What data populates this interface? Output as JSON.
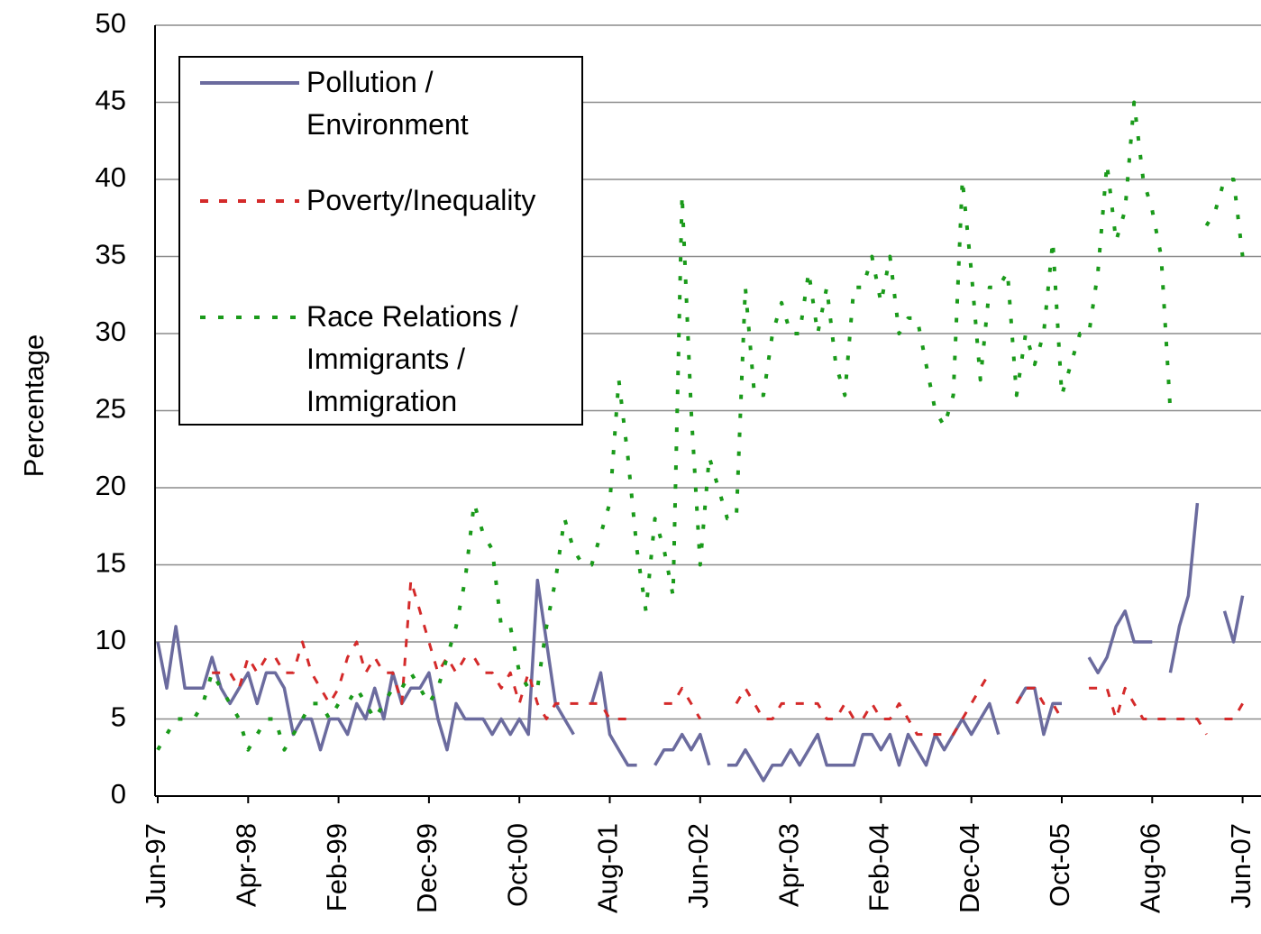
{
  "chart_data": {
    "type": "line",
    "ylabel": "Percentage",
    "categories": [
      "Jun-97",
      null,
      null,
      null,
      null,
      null,
      null,
      null,
      null,
      null,
      "Apr-98",
      null,
      null,
      null,
      null,
      null,
      null,
      null,
      null,
      null,
      "Feb-99",
      null,
      null,
      null,
      null,
      null,
      null,
      null,
      null,
      null,
      "Dec-99",
      null,
      null,
      null,
      null,
      null,
      null,
      null,
      null,
      null,
      "Oct-00",
      null,
      null,
      null,
      null,
      null,
      null,
      null,
      null,
      null,
      "Aug-01",
      null,
      null,
      null,
      null,
      null,
      null,
      null,
      null,
      null,
      "Jun-02",
      null,
      null,
      null,
      null,
      null,
      null,
      null,
      null,
      null,
      "Apr-03",
      null,
      null,
      null,
      null,
      null,
      null,
      null,
      null,
      null,
      "Feb-04",
      null,
      null,
      null,
      null,
      null,
      null,
      null,
      null,
      null,
      "Dec-04",
      null,
      null,
      null,
      null,
      null,
      null,
      null,
      null,
      null,
      "Oct-05",
      null,
      null,
      null,
      null,
      null,
      null,
      null,
      null,
      null,
      "Aug-06",
      null,
      null,
      null,
      null,
      null,
      null,
      null,
      null,
      null,
      "Jun-07"
    ],
    "series": [
      {
        "name": "Pollution / Environment",
        "color": "#6b6b9e",
        "style": "solid",
        "values": [
          10,
          7,
          11,
          7,
          7,
          7,
          9,
          7,
          6,
          7,
          8,
          6,
          8,
          8,
          7,
          4,
          5,
          5,
          3,
          5,
          5,
          4,
          6,
          5,
          7,
          5,
          8,
          6,
          7,
          7,
          8,
          5,
          3,
          6,
          5,
          5,
          5,
          4,
          5,
          4,
          5,
          4,
          14,
          10,
          6,
          5,
          4,
          null,
          6,
          8,
          4,
          3,
          2,
          2,
          null,
          2,
          3,
          3,
          4,
          3,
          4,
          2,
          null,
          2,
          2,
          3,
          2,
          1,
          2,
          2,
          3,
          2,
          3,
          4,
          2,
          2,
          2,
          2,
          4,
          4,
          3,
          4,
          2,
          4,
          3,
          2,
          4,
          3,
          4,
          5,
          4,
          5,
          6,
          4,
          null,
          6,
          7,
          7,
          4,
          6,
          6,
          null,
          null,
          9,
          8,
          9,
          11,
          12,
          10,
          10,
          10,
          null,
          8,
          11,
          13,
          19,
          null,
          null,
          12,
          10,
          13
        ]
      },
      {
        "name": "Poverty/Inequality",
        "color": "#d42a2a",
        "style": "dashed",
        "values": [
          null,
          null,
          null,
          null,
          null,
          null,
          8,
          8,
          8,
          7,
          9,
          8,
          9,
          9,
          8,
          8,
          10,
          8,
          7,
          6,
          7,
          9,
          10,
          8,
          9,
          8,
          8,
          6,
          14,
          12,
          10,
          8,
          9,
          8,
          9,
          9,
          8,
          8,
          7,
          8,
          6,
          8,
          6,
          5,
          6,
          6,
          6,
          6,
          6,
          6,
          5,
          5,
          5,
          null,
          null,
          null,
          6,
          6,
          7,
          6,
          5,
          null,
          null,
          null,
          6,
          7,
          6,
          5,
          5,
          6,
          6,
          6,
          6,
          6,
          5,
          5,
          6,
          5,
          5,
          6,
          5,
          5,
          6,
          5,
          4,
          4,
          4,
          4,
          4,
          5,
          6,
          7,
          8,
          null,
          null,
          6,
          7,
          7,
          6,
          6,
          5,
          null,
          null,
          7,
          7,
          7,
          5,
          7,
          6,
          5,
          5,
          5,
          5,
          5,
          5,
          5,
          4,
          null,
          5,
          5,
          6
        ]
      },
      {
        "name": "Race Relations / Immigrants / Immigration",
        "color": "#1a9a1a",
        "style": "dotted",
        "values": [
          3,
          4,
          5,
          5,
          5,
          6,
          8,
          7,
          6,
          5,
          3,
          4,
          5,
          5,
          3,
          4,
          5,
          6,
          6,
          5,
          6,
          6,
          7,
          6,
          5,
          6,
          7,
          7,
          8,
          7,
          6,
          7,
          9,
          11,
          14,
          19,
          17,
          16,
          11,
          11,
          8,
          7,
          7,
          11,
          14,
          18,
          16,
          15,
          15,
          17,
          19,
          27,
          22,
          16,
          12,
          18,
          16,
          13,
          39,
          25,
          15,
          22,
          20,
          18,
          18,
          33,
          26,
          26,
          30,
          32,
          30,
          30,
          34,
          30,
          33,
          28,
          26,
          33,
          33,
          35,
          32,
          35,
          30,
          31,
          31,
          28,
          25,
          24,
          26,
          40,
          34,
          27,
          33,
          33,
          34,
          26,
          30,
          28,
          30,
          36,
          26,
          28,
          30,
          30,
          34,
          41,
          36,
          38,
          45,
          40,
          38,
          35,
          25,
          null,
          null,
          null,
          37,
          38,
          40,
          40,
          35
        ]
      }
    ],
    "ylim": [
      0,
      50
    ],
    "yticks": [
      0,
      5,
      10,
      15,
      20,
      25,
      30,
      35,
      40,
      45,
      50
    ],
    "grid": true,
    "legend": "upper left"
  }
}
